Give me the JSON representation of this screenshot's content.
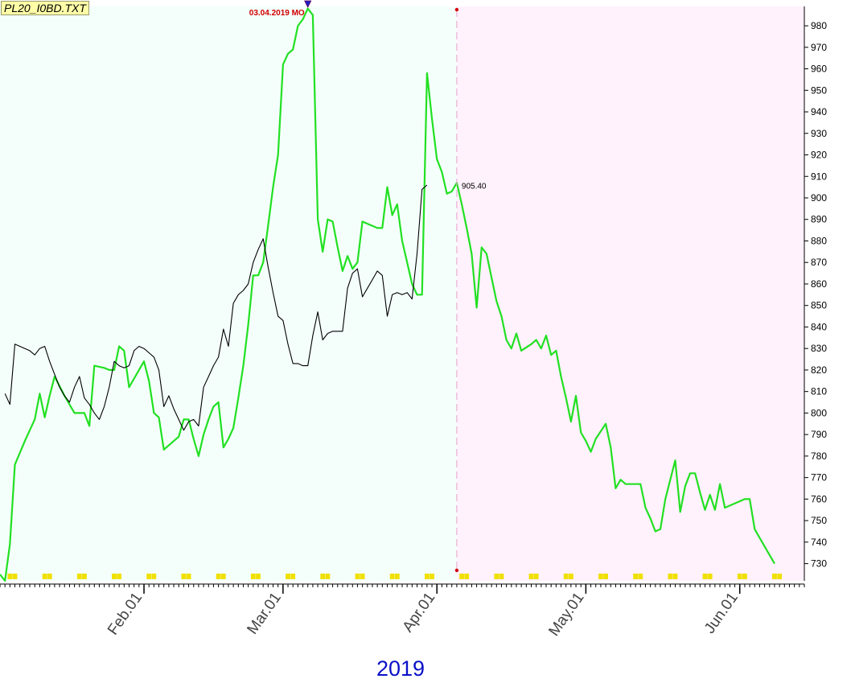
{
  "file_tag": "PL20_I0BD.TXT",
  "year_label": "2019",
  "marker_label": "03.04.2019 MO",
  "value_label": "905.40",
  "colors": {
    "history_bg": "#f4fffc",
    "forecast_bg": "#fff2fd",
    "green_series": "#22e022",
    "black_series": "#000000",
    "divider": "#e6a0c8",
    "marker": "#d00000",
    "arrow": "#2020c0",
    "calendar_tick": "#f0e000"
  },
  "chart_data": {
    "type": "line",
    "x_range": [
      "2019-01-03",
      "2019-06-14"
    ],
    "ylim": [
      722,
      989
    ],
    "y_ticks": [
      730,
      740,
      750,
      760,
      770,
      780,
      790,
      800,
      810,
      820,
      830,
      840,
      850,
      860,
      870,
      880,
      890,
      900,
      910,
      920,
      930,
      940,
      950,
      960,
      970,
      980
    ],
    "month_ticks": [
      {
        "date": "2019-02-01",
        "label": "Feb.01"
      },
      {
        "date": "2019-03-01",
        "label": "Mar.01"
      },
      {
        "date": "2019-04-01",
        "label": "Apr.01"
      },
      {
        "date": "2019-05-01",
        "label": "May.01"
      },
      {
        "date": "2019-06-01",
        "label": "Jun.01"
      }
    ],
    "divider_date": "2019-04-05",
    "grid": false,
    "series": [
      {
        "color": "green",
        "points": [
          [
            "2019-01-03",
            725
          ],
          [
            "2019-01-04",
            722
          ],
          [
            "2019-01-05",
            739
          ],
          [
            "2019-01-06",
            776
          ],
          [
            "2019-01-08",
            787
          ],
          [
            "2019-01-09",
            792
          ],
          [
            "2019-01-10",
            797
          ],
          [
            "2019-01-11",
            809
          ],
          [
            "2019-01-12",
            798
          ],
          [
            "2019-01-13",
            808
          ],
          [
            "2019-01-14",
            817
          ],
          [
            "2019-01-16",
            808
          ],
          [
            "2019-01-18",
            800
          ],
          [
            "2019-01-20",
            800
          ],
          [
            "2019-01-21",
            794
          ],
          [
            "2019-01-22",
            822
          ],
          [
            "2019-01-24",
            821
          ],
          [
            "2019-01-25",
            820
          ],
          [
            "2019-01-26",
            820
          ],
          [
            "2019-01-27",
            831
          ],
          [
            "2019-01-28",
            829
          ],
          [
            "2019-01-29",
            812
          ],
          [
            "2019-01-30",
            816
          ],
          [
            "2019-01-31",
            820
          ],
          [
            "2019-02-01",
            824
          ],
          [
            "2019-02-02",
            815
          ],
          [
            "2019-02-03",
            800
          ],
          [
            "2019-02-04",
            798
          ],
          [
            "2019-02-05",
            783
          ],
          [
            "2019-02-07",
            787
          ],
          [
            "2019-02-08",
            789
          ],
          [
            "2019-02-09",
            797
          ],
          [
            "2019-02-10",
            797
          ],
          [
            "2019-02-11",
            788
          ],
          [
            "2019-02-12",
            780
          ],
          [
            "2019-02-13",
            790
          ],
          [
            "2019-02-14",
            797
          ],
          [
            "2019-02-15",
            803
          ],
          [
            "2019-02-16",
            805
          ],
          [
            "2019-02-17",
            784
          ],
          [
            "2019-02-18",
            788
          ],
          [
            "2019-02-19",
            793
          ],
          [
            "2019-02-20",
            807
          ],
          [
            "2019-02-21",
            822
          ],
          [
            "2019-02-22",
            841
          ],
          [
            "2019-02-23",
            864
          ],
          [
            "2019-02-24",
            864
          ],
          [
            "2019-02-25",
            870
          ],
          [
            "2019-02-26",
            887
          ],
          [
            "2019-02-27",
            905
          ],
          [
            "2019-02-28",
            920
          ],
          [
            "2019-03-01",
            962
          ],
          [
            "2019-03-02",
            967
          ],
          [
            "2019-03-03",
            969
          ],
          [
            "2019-03-04",
            980
          ],
          [
            "2019-03-05",
            983
          ],
          [
            "2019-03-06",
            988
          ],
          [
            "2019-03-07",
            985
          ],
          [
            "2019-03-08",
            890
          ],
          [
            "2019-03-09",
            875
          ],
          [
            "2019-03-10",
            890
          ],
          [
            "2019-03-11",
            889
          ],
          [
            "2019-03-12",
            877
          ],
          [
            "2019-03-13",
            866
          ],
          [
            "2019-03-14",
            873
          ],
          [
            "2019-03-15",
            867
          ],
          [
            "2019-03-16",
            870
          ],
          [
            "2019-03-17",
            889
          ],
          [
            "2019-03-18",
            888
          ],
          [
            "2019-03-19",
            887
          ],
          [
            "2019-03-20",
            886
          ],
          [
            "2019-03-21",
            886
          ],
          [
            "2019-03-22",
            905
          ],
          [
            "2019-03-23",
            892
          ],
          [
            "2019-03-24",
            897
          ],
          [
            "2019-03-25",
            880
          ],
          [
            "2019-03-26",
            870
          ],
          [
            "2019-03-27",
            860
          ],
          [
            "2019-03-28",
            855
          ],
          [
            "2019-03-29",
            855
          ],
          [
            "2019-03-30",
            958
          ],
          [
            "2019-03-31",
            937
          ],
          [
            "2019-04-01",
            918
          ],
          [
            "2019-04-02",
            912
          ],
          [
            "2019-04-03",
            902
          ],
          [
            "2019-04-04",
            903
          ],
          [
            "2019-04-05",
            907
          ],
          [
            "2019-04-06",
            897
          ],
          [
            "2019-04-07",
            886
          ],
          [
            "2019-04-08",
            874
          ],
          [
            "2019-04-09",
            849
          ],
          [
            "2019-04-10",
            877
          ],
          [
            "2019-04-11",
            874
          ],
          [
            "2019-04-13",
            852
          ],
          [
            "2019-04-14",
            845
          ],
          [
            "2019-04-15",
            834
          ],
          [
            "2019-04-16",
            830
          ],
          [
            "2019-04-17",
            837
          ],
          [
            "2019-04-18",
            829
          ],
          [
            "2019-04-20",
            832
          ],
          [
            "2019-04-21",
            834
          ],
          [
            "2019-04-22",
            830
          ],
          [
            "2019-04-23",
            836
          ],
          [
            "2019-04-24",
            827
          ],
          [
            "2019-04-25",
            829
          ],
          [
            "2019-04-26",
            817
          ],
          [
            "2019-04-27",
            807
          ],
          [
            "2019-04-28",
            796
          ],
          [
            "2019-04-29",
            808
          ],
          [
            "2019-04-30",
            791
          ],
          [
            "2019-05-01",
            787
          ],
          [
            "2019-05-02",
            782
          ],
          [
            "2019-05-03",
            788
          ],
          [
            "2019-05-05",
            795
          ],
          [
            "2019-05-06",
            784
          ],
          [
            "2019-05-07",
            765
          ],
          [
            "2019-05-08",
            769
          ],
          [
            "2019-05-09",
            767
          ],
          [
            "2019-05-12",
            767
          ],
          [
            "2019-05-13",
            756
          ],
          [
            "2019-05-14",
            751
          ],
          [
            "2019-05-15",
            745
          ],
          [
            "2019-05-16",
            746
          ],
          [
            "2019-05-17",
            760
          ],
          [
            "2019-05-19",
            778
          ],
          [
            "2019-05-20",
            754
          ],
          [
            "2019-05-21",
            766
          ],
          [
            "2019-05-22",
            772
          ],
          [
            "2019-05-23",
            772
          ],
          [
            "2019-05-24",
            763
          ],
          [
            "2019-05-25",
            755
          ],
          [
            "2019-05-26",
            762
          ],
          [
            "2019-05-27",
            755
          ],
          [
            "2019-05-28",
            767
          ],
          [
            "2019-05-29",
            756
          ],
          [
            "2019-06-02",
            760
          ],
          [
            "2019-06-03",
            760
          ],
          [
            "2019-06-04",
            746
          ],
          [
            "2019-06-05",
            742
          ],
          [
            "2019-06-06",
            738
          ],
          [
            "2019-06-07",
            734
          ],
          [
            "2019-06-08",
            730
          ]
        ]
      },
      {
        "color": "black",
        "points": [
          [
            "2019-01-04",
            809
          ],
          [
            "2019-01-05",
            804
          ],
          [
            "2019-01-06",
            832
          ],
          [
            "2019-01-07",
            831
          ],
          [
            "2019-01-08",
            830
          ],
          [
            "2019-01-09",
            829
          ],
          [
            "2019-01-10",
            827
          ],
          [
            "2019-01-11",
            830
          ],
          [
            "2019-01-12",
            831
          ],
          [
            "2019-01-13",
            824
          ],
          [
            "2019-01-14",
            818
          ],
          [
            "2019-01-15",
            812
          ],
          [
            "2019-01-16",
            808
          ],
          [
            "2019-01-17",
            805
          ],
          [
            "2019-01-18",
            812
          ],
          [
            "2019-01-19",
            817
          ],
          [
            "2019-01-20",
            807
          ],
          [
            "2019-01-21",
            804
          ],
          [
            "2019-01-22",
            800
          ],
          [
            "2019-01-23",
            797
          ],
          [
            "2019-01-24",
            803
          ],
          [
            "2019-01-25",
            812
          ],
          [
            "2019-01-26",
            824
          ],
          [
            "2019-01-27",
            822
          ],
          [
            "2019-01-28",
            821
          ],
          [
            "2019-01-29",
            822
          ],
          [
            "2019-01-30",
            829
          ],
          [
            "2019-01-31",
            831
          ],
          [
            "2019-02-01",
            830
          ],
          [
            "2019-02-02",
            828
          ],
          [
            "2019-02-03",
            826
          ],
          [
            "2019-02-04",
            820
          ],
          [
            "2019-02-05",
            803
          ],
          [
            "2019-02-06",
            808
          ],
          [
            "2019-02-07",
            802
          ],
          [
            "2019-02-08",
            797
          ],
          [
            "2019-02-09",
            792
          ],
          [
            "2019-02-10",
            796
          ],
          [
            "2019-02-11",
            797
          ],
          [
            "2019-02-12",
            794
          ],
          [
            "2019-02-13",
            812
          ],
          [
            "2019-02-14",
            817
          ],
          [
            "2019-02-15",
            822
          ],
          [
            "2019-02-16",
            826
          ],
          [
            "2019-02-17",
            839
          ],
          [
            "2019-02-18",
            831
          ],
          [
            "2019-02-19",
            851
          ],
          [
            "2019-02-20",
            855
          ],
          [
            "2019-02-21",
            857
          ],
          [
            "2019-02-22",
            860
          ],
          [
            "2019-02-23",
            870
          ],
          [
            "2019-02-24",
            876
          ],
          [
            "2019-02-25",
            881
          ],
          [
            "2019-02-26",
            868
          ],
          [
            "2019-02-27",
            856
          ],
          [
            "2019-02-28",
            845
          ],
          [
            "2019-03-01",
            843
          ],
          [
            "2019-03-02",
            832
          ],
          [
            "2019-03-03",
            823
          ],
          [
            "2019-03-04",
            823
          ],
          [
            "2019-03-05",
            822
          ],
          [
            "2019-03-06",
            822
          ],
          [
            "2019-03-07",
            836
          ],
          [
            "2019-03-08",
            847
          ],
          [
            "2019-03-09",
            834
          ],
          [
            "2019-03-10",
            837
          ],
          [
            "2019-03-11",
            838
          ],
          [
            "2019-03-12",
            838
          ],
          [
            "2019-03-13",
            838
          ],
          [
            "2019-03-14",
            858
          ],
          [
            "2019-03-15",
            865
          ],
          [
            "2019-03-16",
            867
          ],
          [
            "2019-03-17",
            854
          ],
          [
            "2019-03-18",
            858
          ],
          [
            "2019-03-19",
            862
          ],
          [
            "2019-03-20",
            866
          ],
          [
            "2019-03-21",
            864
          ],
          [
            "2019-03-22",
            845
          ],
          [
            "2019-03-23",
            855
          ],
          [
            "2019-03-24",
            856
          ],
          [
            "2019-03-25",
            855
          ],
          [
            "2019-03-26",
            856
          ],
          [
            "2019-03-27",
            853
          ],
          [
            "2019-03-28",
            874
          ],
          [
            "2019-03-29",
            904
          ],
          [
            "2019-03-30",
            906
          ]
        ]
      }
    ]
  }
}
